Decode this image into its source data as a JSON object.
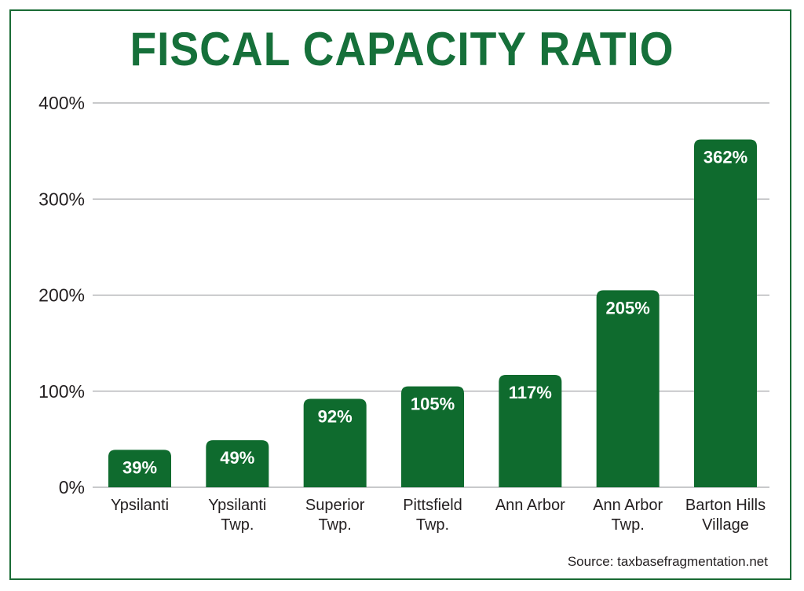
{
  "colors": {
    "bar": "#0f6b2e",
    "title": "#16703a",
    "grid": "#a7a9ac",
    "frame": "#1a6b35"
  },
  "chart_data": {
    "type": "bar",
    "title": "FISCAL CAPACITY RATIO",
    "xlabel": "",
    "ylabel": "",
    "ylim": [
      0,
      400
    ],
    "yticks": [
      0,
      100,
      200,
      300,
      400
    ],
    "ytick_labels": [
      "0%",
      "100%",
      "200%",
      "300%",
      "400%"
    ],
    "grid": true,
    "categories": [
      [
        "Ypsilanti"
      ],
      [
        "Ypsilanti",
        "Twp."
      ],
      [
        "Superior",
        "Twp."
      ],
      [
        "Pittsfield",
        "Twp."
      ],
      [
        "Ann Arbor"
      ],
      [
        "Ann Arbor",
        "Twp."
      ],
      [
        "Barton Hills",
        "Village"
      ]
    ],
    "values": [
      39,
      49,
      92,
      105,
      117,
      205,
      362
    ],
    "data_labels": [
      "39%",
      "49%",
      "92%",
      "105%",
      "117%",
      "205%",
      "362%"
    ]
  },
  "source": "Source: taxbasefragmentation.net"
}
